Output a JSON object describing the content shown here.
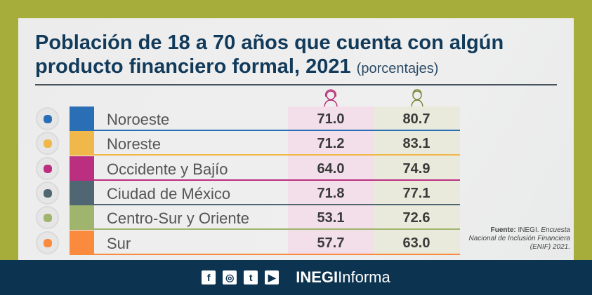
{
  "title": "Población de 18 a 70 años que cuenta con algún producto financiero formal, 2021",
  "subtitle": "(porcentajes)",
  "columns": [
    {
      "icon": "woman-icon",
      "color": "#b8337a"
    },
    {
      "icon": "man-icon",
      "color": "#7a8a3a"
    }
  ],
  "rows": [
    {
      "region": "Noroeste",
      "women": "71.0",
      "men": "80.7",
      "color": "#2a6fb5"
    },
    {
      "region": "Noreste",
      "women": "71.2",
      "men": "83.1",
      "color": "#f0b84a"
    },
    {
      "region": "Occidente y Bajío",
      "women": "64.0",
      "men": "74.9",
      "color": "#bb2f80"
    },
    {
      "region": "Ciudad de México",
      "women": "71.8",
      "men": "77.1",
      "color": "#516673"
    },
    {
      "region": "Centro-Sur y Oriente",
      "women": "53.1",
      "men": "72.6",
      "color": "#9fb56d"
    },
    {
      "region": "Sur",
      "women": "57.7",
      "men": "63.0",
      "color": "#fa8a3e"
    }
  ],
  "source": {
    "label": "Fuente:",
    "org": "INEGI.",
    "text": "Encuesta Nacional de Inclusión Financiera (ENIF) 2021."
  },
  "footer": {
    "social": [
      "f",
      "◎",
      "t",
      "▶"
    ],
    "brand_bold": "INEGI",
    "brand": "Informa"
  }
}
